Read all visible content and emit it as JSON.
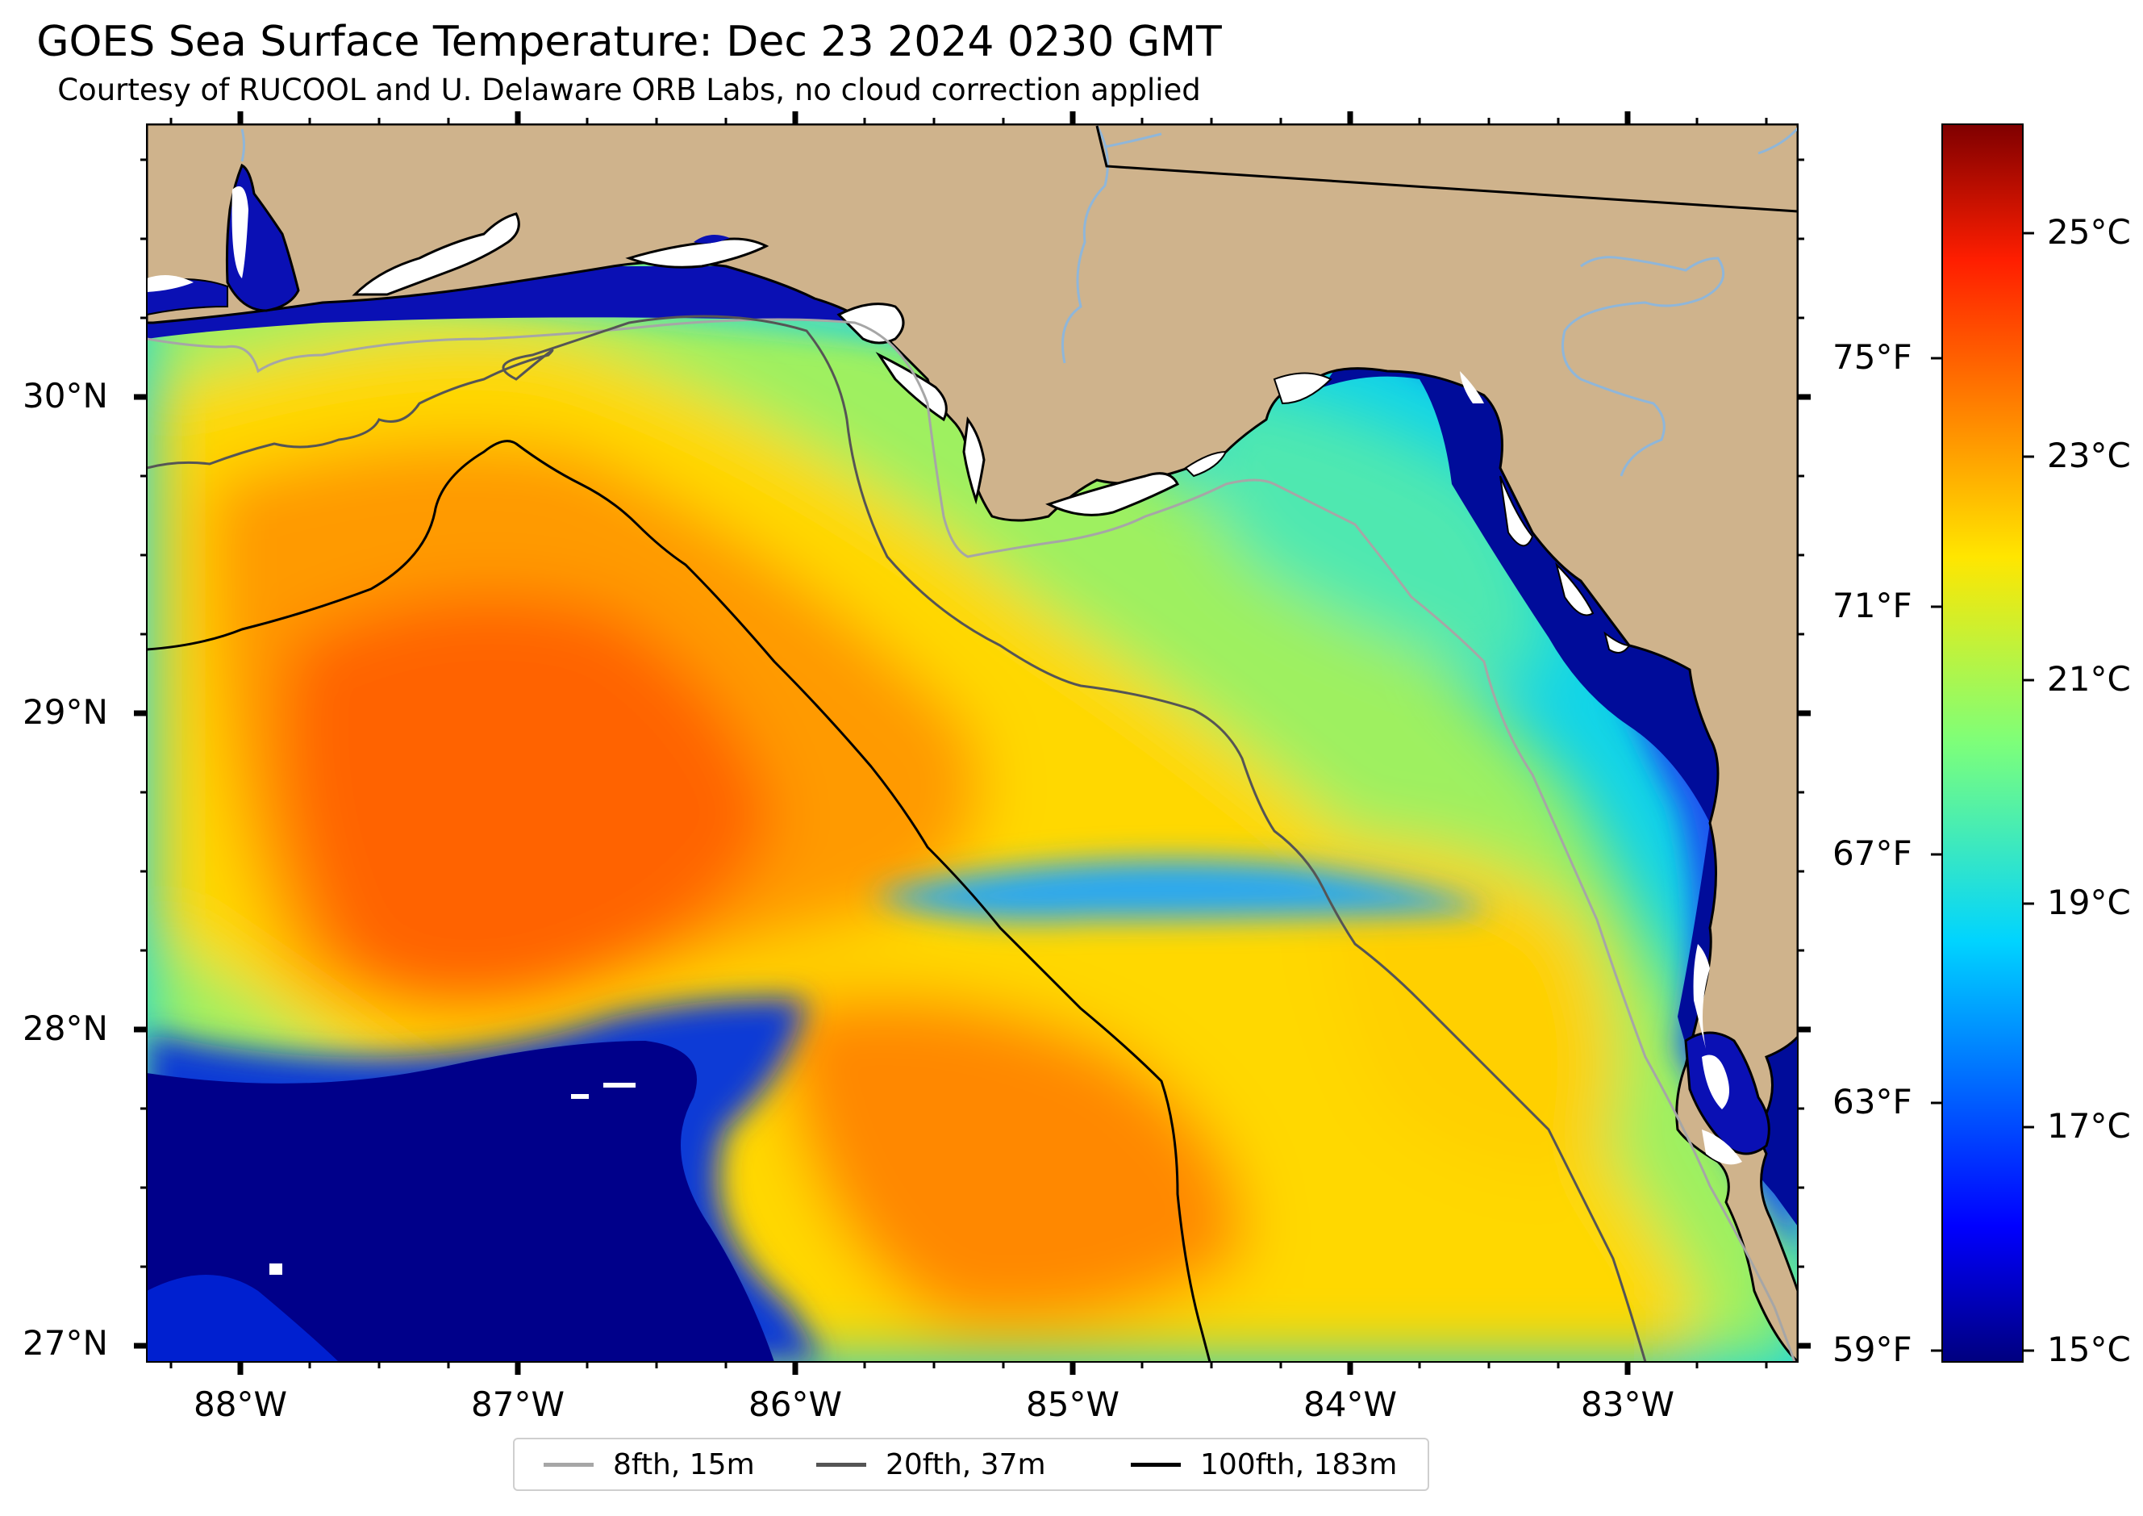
{
  "title": "GOES Sea Surface Temperature: Dec 23 2024 0230 GMT",
  "subtitle": "Courtesy of RUCOOL and U. Delaware ORB Labs, no cloud correction applied",
  "map": {
    "lat_labels": [
      "30°N",
      "29°N",
      "28°N",
      "27°N"
    ],
    "lon_labels": [
      "88°W",
      "87°W",
      "86°W",
      "85°W",
      "84°W",
      "83°W"
    ],
    "land_color": "#cfb38c",
    "coast_color": "#000000",
    "river_color": "#8fb6d9"
  },
  "colorbar": {
    "celsius_labels": [
      "25°C",
      "23°C",
      "21°C",
      "19°C",
      "17°C",
      "15°C"
    ],
    "fahrenheit_labels": [
      "75°F",
      "71°F",
      "67°F",
      "63°F",
      "59°F"
    ],
    "colormap": "jet",
    "range_c": [
      15,
      26
    ]
  },
  "legend": {
    "items": [
      {
        "label": "8fth, 15m",
        "color": "#a6a6a6"
      },
      {
        "label": "20fth, 37m",
        "color": "#555555"
      },
      {
        "label": "100fth, 183m",
        "color": "#000000"
      }
    ]
  }
}
